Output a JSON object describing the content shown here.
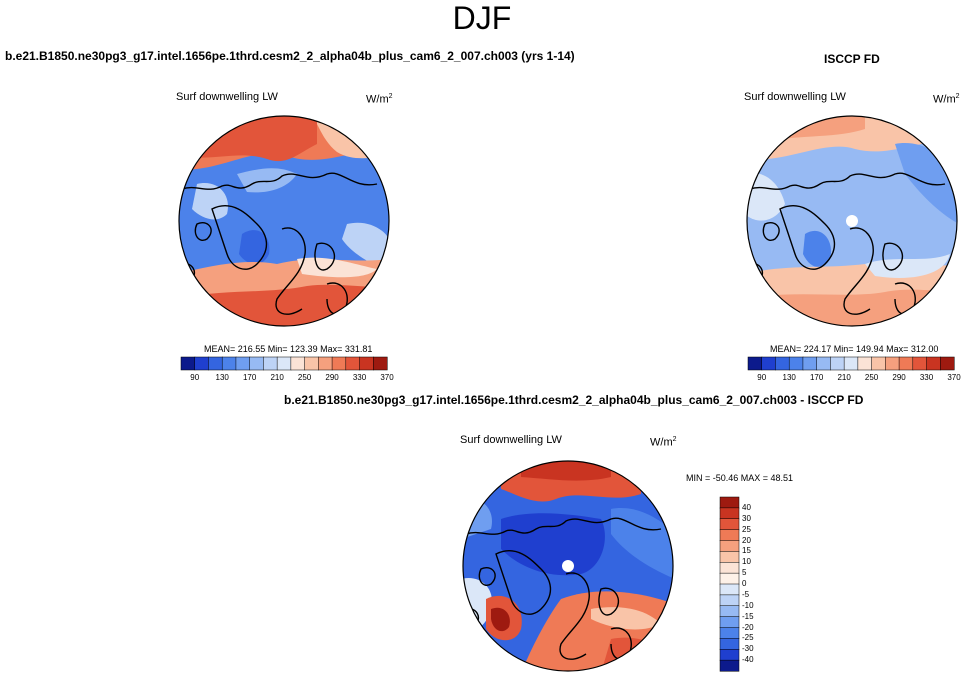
{
  "page_title": "DJF",
  "panels": [
    {
      "id": "model",
      "case_title": "b.e21.B1850.ne30pg3_g17.intel.1656pe.1thrd.cesm2_2_alpha04b_plus_cam6_2_007.ch003 (yrs 1-14)",
      "variable": "Surf downwelling LW",
      "units_base": "W/m",
      "units_exp": "2",
      "stats": "MEAN= 216.55  Min= 123.39  Max= 331.81"
    },
    {
      "id": "obs",
      "case_title": "ISCCP FD",
      "variable": "Surf downwelling LW",
      "units_base": "W/m",
      "units_exp": "2",
      "stats": "MEAN= 224.17  Min= 149.94  Max= 312.00"
    },
    {
      "id": "diff",
      "case_title": "b.e21.B1850.ne30pg3_g17.intel.1656pe.1thrd.cesm2_2_alpha04b_plus_cam6_2_007.ch003 - ISCCP FD",
      "variable": "Surf downwelling LW",
      "units_base": "W/m",
      "units_exp": "2",
      "stats": "MIN = -50.46 MAX =  48.51"
    }
  ],
  "colorbar_abs": {
    "tick_labels": [
      "90",
      "130",
      "170",
      "210",
      "250",
      "290",
      "330",
      "370"
    ],
    "colors": [
      "#0c1a8c",
      "#1f3fcf",
      "#3465e0",
      "#4c82ea",
      "#6f9ef0",
      "#97baf3",
      "#bdd3f6",
      "#dbe7f8",
      "#fbe3d6",
      "#f9c4a8",
      "#f5a07e",
      "#ef7a56",
      "#e2553a",
      "#c93421",
      "#9e1a10"
    ]
  },
  "colorbar_diff": {
    "tick_labels": [
      "40",
      "30",
      "25",
      "20",
      "15",
      "10",
      "5",
      "0",
      "-5",
      "-10",
      "-15",
      "-20",
      "-25",
      "-30",
      "-40"
    ],
    "colors": [
      "#9e1a10",
      "#c93421",
      "#e2553a",
      "#ef7a56",
      "#f5a07e",
      "#f9c4a8",
      "#fbe3d6",
      "#fdf1e8",
      "#dbe7f8",
      "#bdd3f6",
      "#97baf3",
      "#6f9ef0",
      "#4c82ea",
      "#3465e0",
      "#1f3fcf",
      "#0c1a8c"
    ]
  },
  "chart_data": [
    {
      "type": "heatmap",
      "title": "b.e21.B1850.ne30pg3_g17.intel.1656pe.1thrd.cesm2_2_alpha04b_plus_cam6_2_007.ch003 (yrs 1-14)",
      "projection": "north polar stereographic",
      "variable": "Surf downwelling LW",
      "units": "W/m2",
      "mean": 216.55,
      "min": 123.39,
      "max": 331.81,
      "colorbar_ticks": [
        90,
        130,
        170,
        210,
        250,
        290,
        330,
        370
      ]
    },
    {
      "type": "heatmap",
      "title": "ISCCP FD",
      "projection": "north polar stereographic",
      "variable": "Surf downwelling LW",
      "units": "W/m2",
      "mean": 224.17,
      "min": 149.94,
      "max": 312.0,
      "colorbar_ticks": [
        90,
        130,
        170,
        210,
        250,
        290,
        330,
        370
      ]
    },
    {
      "type": "heatmap",
      "title": "b.e21.B1850.ne30pg3_g17.intel.1656pe.1thrd.cesm2_2_alpha04b_plus_cam6_2_007.ch003 - ISCCP FD",
      "projection": "north polar stereographic",
      "variable": "Surf downwelling LW",
      "units": "W/m2",
      "min": -50.46,
      "max": 48.51,
      "colorbar_ticks": [
        40,
        30,
        25,
        20,
        15,
        10,
        5,
        0,
        -5,
        -10,
        -15,
        -20,
        -25,
        -30,
        -40
      ]
    }
  ]
}
